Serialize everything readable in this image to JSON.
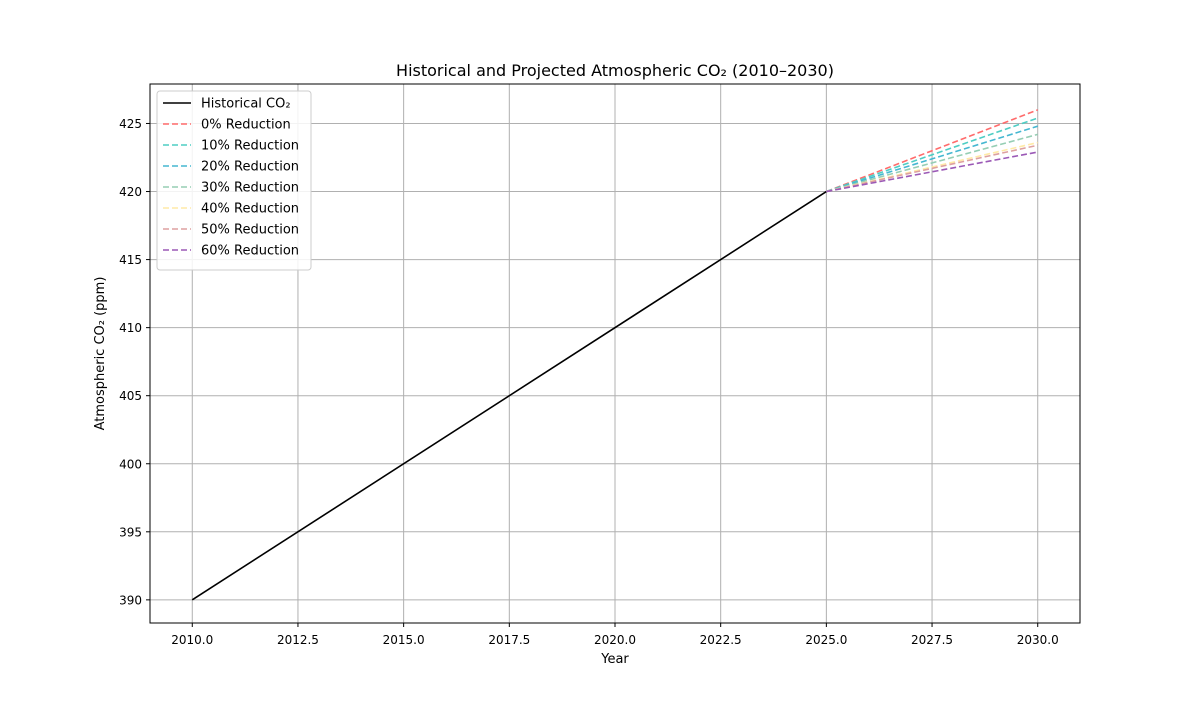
{
  "chart_data": {
    "type": "line",
    "title": "Historical and Projected Atmospheric CO₂ (2010–2030)",
    "xlabel": "Year",
    "ylabel": "Atmospheric CO₂ (ppm)",
    "xlim": [
      2009.0,
      2031.0
    ],
    "ylim": [
      388.3,
      427.9
    ],
    "xticks": [
      2010.0,
      2012.5,
      2015.0,
      2017.5,
      2020.0,
      2022.5,
      2025.0,
      2027.5,
      2030.0
    ],
    "xtick_labels": [
      "2010.0",
      "2012.5",
      "2015.0",
      "2017.5",
      "2020.0",
      "2022.5",
      "2025.0",
      "2027.5",
      "2030.0"
    ],
    "yticks": [
      390,
      395,
      400,
      405,
      410,
      415,
      420,
      425
    ],
    "ytick_labels": [
      "390",
      "395",
      "400",
      "405",
      "410",
      "415",
      "420",
      "425"
    ],
    "grid": true,
    "legend_position": "top-left",
    "series": [
      {
        "name": "Historical CO₂",
        "color": "#000000",
        "dashed": false,
        "x": [
          2010,
          2025
        ],
        "y": [
          390,
          420
        ]
      },
      {
        "name": "0% Reduction",
        "color": "#ff6b6b",
        "dashed": true,
        "x": [
          2025,
          2030
        ],
        "y": [
          420,
          426.0
        ]
      },
      {
        "name": "10% Reduction",
        "color": "#4ecdc4",
        "dashed": true,
        "x": [
          2025,
          2030
        ],
        "y": [
          420,
          425.4
        ]
      },
      {
        "name": "20% Reduction",
        "color": "#45b7d1",
        "dashed": true,
        "x": [
          2025,
          2030
        ],
        "y": [
          420,
          424.8
        ]
      },
      {
        "name": "30% Reduction",
        "color": "#96ceb4",
        "dashed": true,
        "x": [
          2025,
          2030
        ],
        "y": [
          420,
          424.2
        ]
      },
      {
        "name": "40% Reduction",
        "color": "#ffeaa7",
        "dashed": true,
        "x": [
          2025,
          2030
        ],
        "y": [
          420,
          423.6
        ]
      },
      {
        "name": "50% Reduction",
        "color": "#dda0a0",
        "dashed": true,
        "x": [
          2025,
          2030
        ],
        "y": [
          420,
          423.4
        ]
      },
      {
        "name": "60% Reduction",
        "color": "#9b59b6",
        "dashed": true,
        "x": [
          2025,
          2030
        ],
        "y": [
          420,
          422.9
        ]
      }
    ]
  }
}
